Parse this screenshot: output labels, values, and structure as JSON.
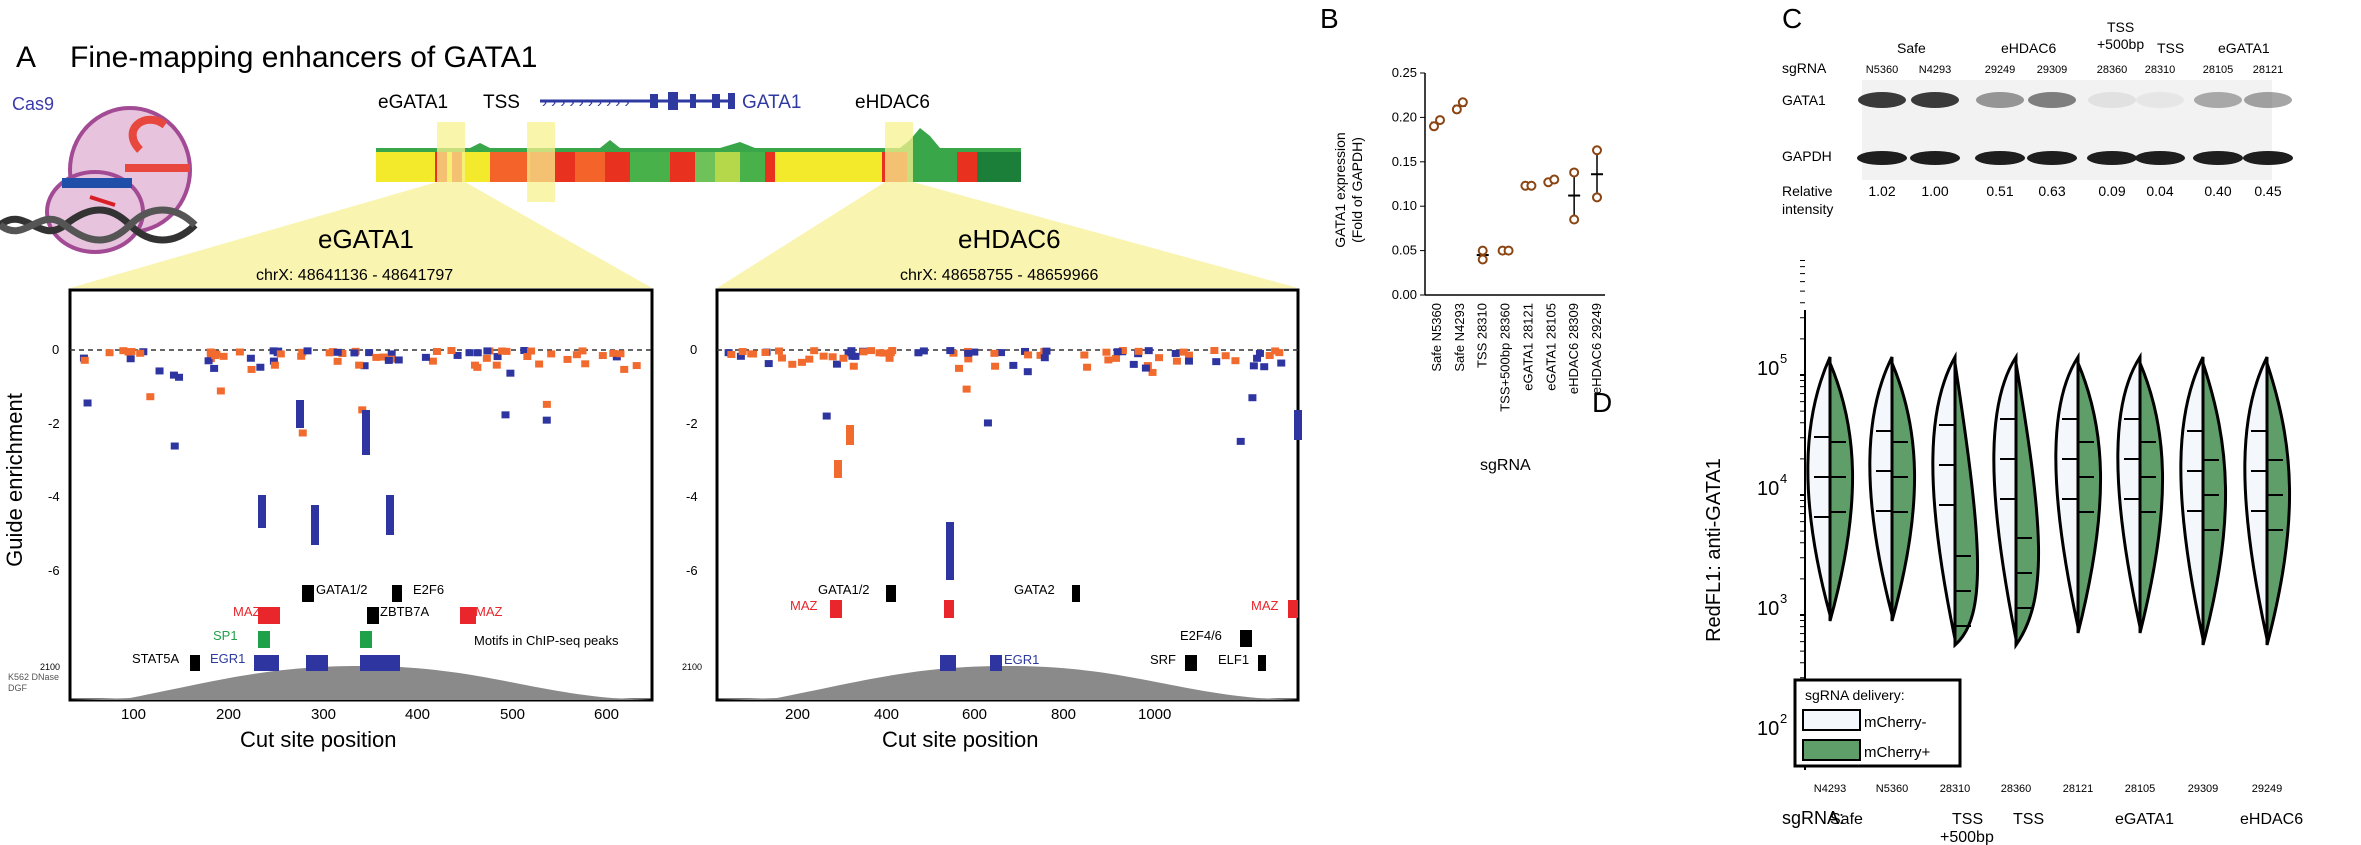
{
  "panelA": {
    "label": "A",
    "title": "Fine-mapping enhancers of GATA1",
    "cas9": "Cas9",
    "track_labels": [
      "eGATA1",
      "TSS",
      "GATA1",
      "eHDAC6"
    ],
    "zoom_left": {
      "name": "eGATA1",
      "coords": "chrX: 48641136 - 48641797"
    },
    "zoom_right": {
      "name": "eHDAC6",
      "coords": "chrX: 48658755 - 48659966"
    },
    "ylabel": "Guide enrichment",
    "yticks": [
      "0",
      "-2",
      "-4",
      "-6"
    ],
    "xlabel": "Cut site position",
    "xticks_left": [
      "100",
      "200",
      "300",
      "400",
      "500",
      "600"
    ],
    "xticks_right": [
      "200",
      "400",
      "600",
      "800",
      "1000"
    ],
    "dnase_tick": "2100",
    "dnase_label_1": "K562 DNase",
    "dnase_label_2": "DGF",
    "motif_note": "Motifs in ChIP-seq peaks",
    "motifs_left": [
      "GATA1/2",
      "E2F6",
      "MAZ",
      "ZBTB7A",
      "MAZ",
      "SP1",
      "STAT5A",
      "EGR1"
    ],
    "motifs_right": [
      "GATA1/2",
      "GATA2",
      "MAZ",
      "MAZ",
      "E2F4/6",
      "SRF",
      "ELF1",
      "EGR1"
    ]
  },
  "panelB": {
    "label": "B",
    "ylabel_1": "GATA1  expression",
    "ylabel_2": "(Fold of GAPDH)",
    "xlabel": "sgRNA",
    "chart_data": {
      "type": "scatter",
      "categories": [
        "Safe N5360",
        "Safe N4293",
        "TSS 28310",
        "TSS+500bp 28360",
        "eGATA1 28121",
        "eGATA1 28105",
        "eHDAC6 28309",
        "eHDAC6 29249"
      ],
      "yticks": [
        "0.00",
        "0.05",
        "0.10",
        "0.15",
        "0.20",
        "0.25"
      ],
      "ylim": [
        0,
        0.25
      ],
      "values": [
        [
          0.19,
          0.197
        ],
        [
          0.209,
          0.217
        ],
        [
          0.04,
          0.05
        ],
        [
          0.05,
          0.05
        ],
        [
          0.123,
          0.123
        ],
        [
          0.127,
          0.13
        ],
        [
          0.085,
          0.138
        ],
        [
          0.11,
          0.163
        ]
      ],
      "means": [
        0.194,
        0.213,
        0.045,
        0.05,
        0.123,
        0.128,
        0.112,
        0.136
      ]
    }
  },
  "panelC": {
    "label": "C",
    "groups": [
      "Safe",
      "eHDAC6",
      "TSS",
      "+500bp",
      "TSS",
      "eGATA1"
    ],
    "sgrna_label": "sgRNA",
    "lanes": [
      "N5360",
      "N4293",
      "29249",
      "29309",
      "28360",
      "28310",
      "28105",
      "28121"
    ],
    "row_gata1": "GATA1",
    "row_gapdh": "GAPDH",
    "rel_label_1": "Relative",
    "rel_label_2": "intensity",
    "intensities": [
      "1.02",
      "1.00",
      "0.51",
      "0.63",
      "0.09",
      "0.04",
      "0.40",
      "0.45"
    ]
  },
  "panelD": {
    "label": "D",
    "ylabel": "RedFL1: anti-GATA1",
    "ytick_base": "10",
    "ytick_exps": [
      "5",
      "4",
      "3",
      "2"
    ],
    "legend_title": "sgRNA delivery:",
    "legend_items": [
      "mCherry-",
      "mCherry+"
    ],
    "lanes": [
      "N4293",
      "N5360",
      "28310",
      "28360",
      "28121",
      "28105",
      "29309",
      "29249"
    ],
    "sgrna_label": "sgRNA:",
    "group_labels": [
      "Safe",
      "TSS",
      "+500bp",
      "TSS",
      "eGATA1",
      "eHDAC6"
    ],
    "colors": {
      "minus": "#f4f7fb",
      "plus": "#5f9d69"
    }
  }
}
